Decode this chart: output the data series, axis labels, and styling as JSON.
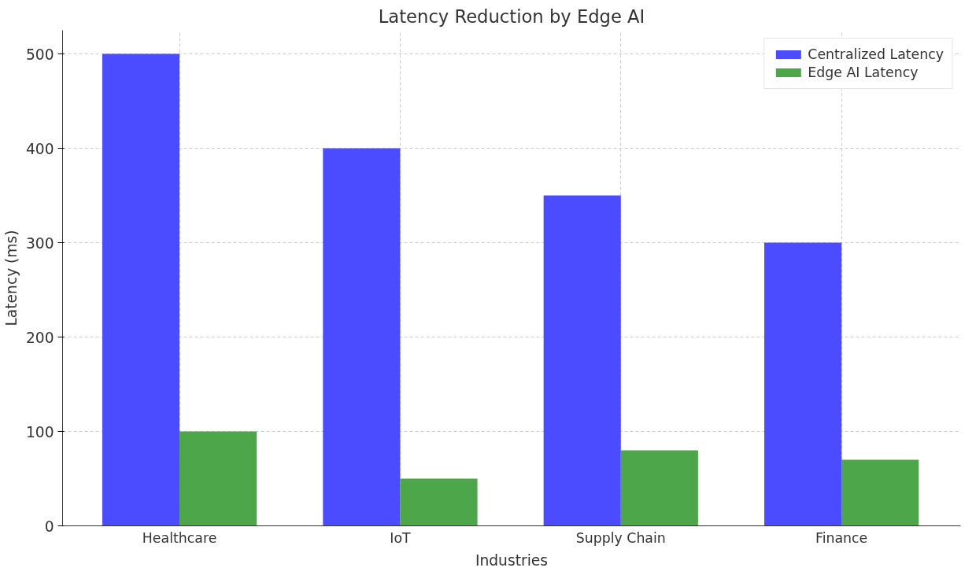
{
  "chart_data": {
    "type": "bar",
    "title": "Latency Reduction by Edge AI",
    "xlabel": "Industries",
    "ylabel": "Latency (ms)",
    "categories": [
      "Healthcare",
      "IoT",
      "Supply Chain",
      "Finance"
    ],
    "series": [
      {
        "name": "Centralized Latency",
        "color": "#4b4bff",
        "values": [
          500,
          400,
          350,
          300
        ]
      },
      {
        "name": "Edge AI Latency",
        "color": "#4ea64a",
        "values": [
          100,
          50,
          80,
          70
        ]
      }
    ],
    "ylim": [
      0,
      525
    ],
    "yticks": [
      0,
      100,
      200,
      300,
      400,
      500
    ],
    "grid": true,
    "legend": "top right"
  }
}
